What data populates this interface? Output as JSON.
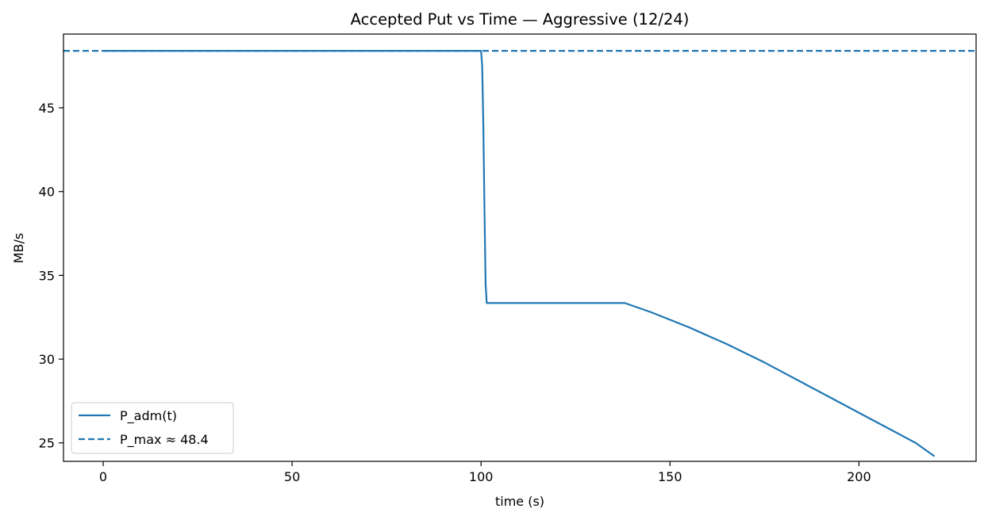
{
  "chart_data": {
    "type": "line",
    "title": "Accepted Put vs Time — Aggressive (12/24)",
    "xlabel": "time (s)",
    "ylabel": "MB/s",
    "xlim": [
      -10.5,
      231
    ],
    "ylim": [
      23.9,
      49.4
    ],
    "xticks": [
      0,
      50,
      100,
      150,
      200
    ],
    "yticks": [
      25,
      30,
      35,
      40,
      45
    ],
    "xtick_labels": [
      "0",
      "50",
      "100",
      "150",
      "200"
    ],
    "ytick_labels": [
      "25",
      "30",
      "35",
      "40",
      "45"
    ],
    "grid": false,
    "legend_position": "lower-left",
    "series": [
      {
        "name": "P_adm(t)",
        "style": "solid",
        "color": "#1f77b4",
        "x": [
          0,
          50,
          100,
          100.3,
          100.6,
          100.9,
          101.2,
          101.5,
          110,
          120,
          130,
          138,
          145,
          155,
          165,
          175,
          185,
          195,
          205,
          215,
          220
        ],
        "y": [
          48.4,
          48.4,
          48.4,
          47.5,
          44.0,
          39.0,
          34.5,
          33.35,
          33.35,
          33.35,
          33.35,
          33.35,
          32.8,
          31.9,
          30.9,
          29.8,
          28.6,
          27.4,
          26.2,
          25.0,
          24.2
        ]
      },
      {
        "name": "P_max ≈ 48.4",
        "style": "dashed",
        "color": "#1f77b4",
        "x": [
          -10.5,
          231
        ],
        "y": [
          48.4,
          48.4
        ]
      }
    ]
  }
}
